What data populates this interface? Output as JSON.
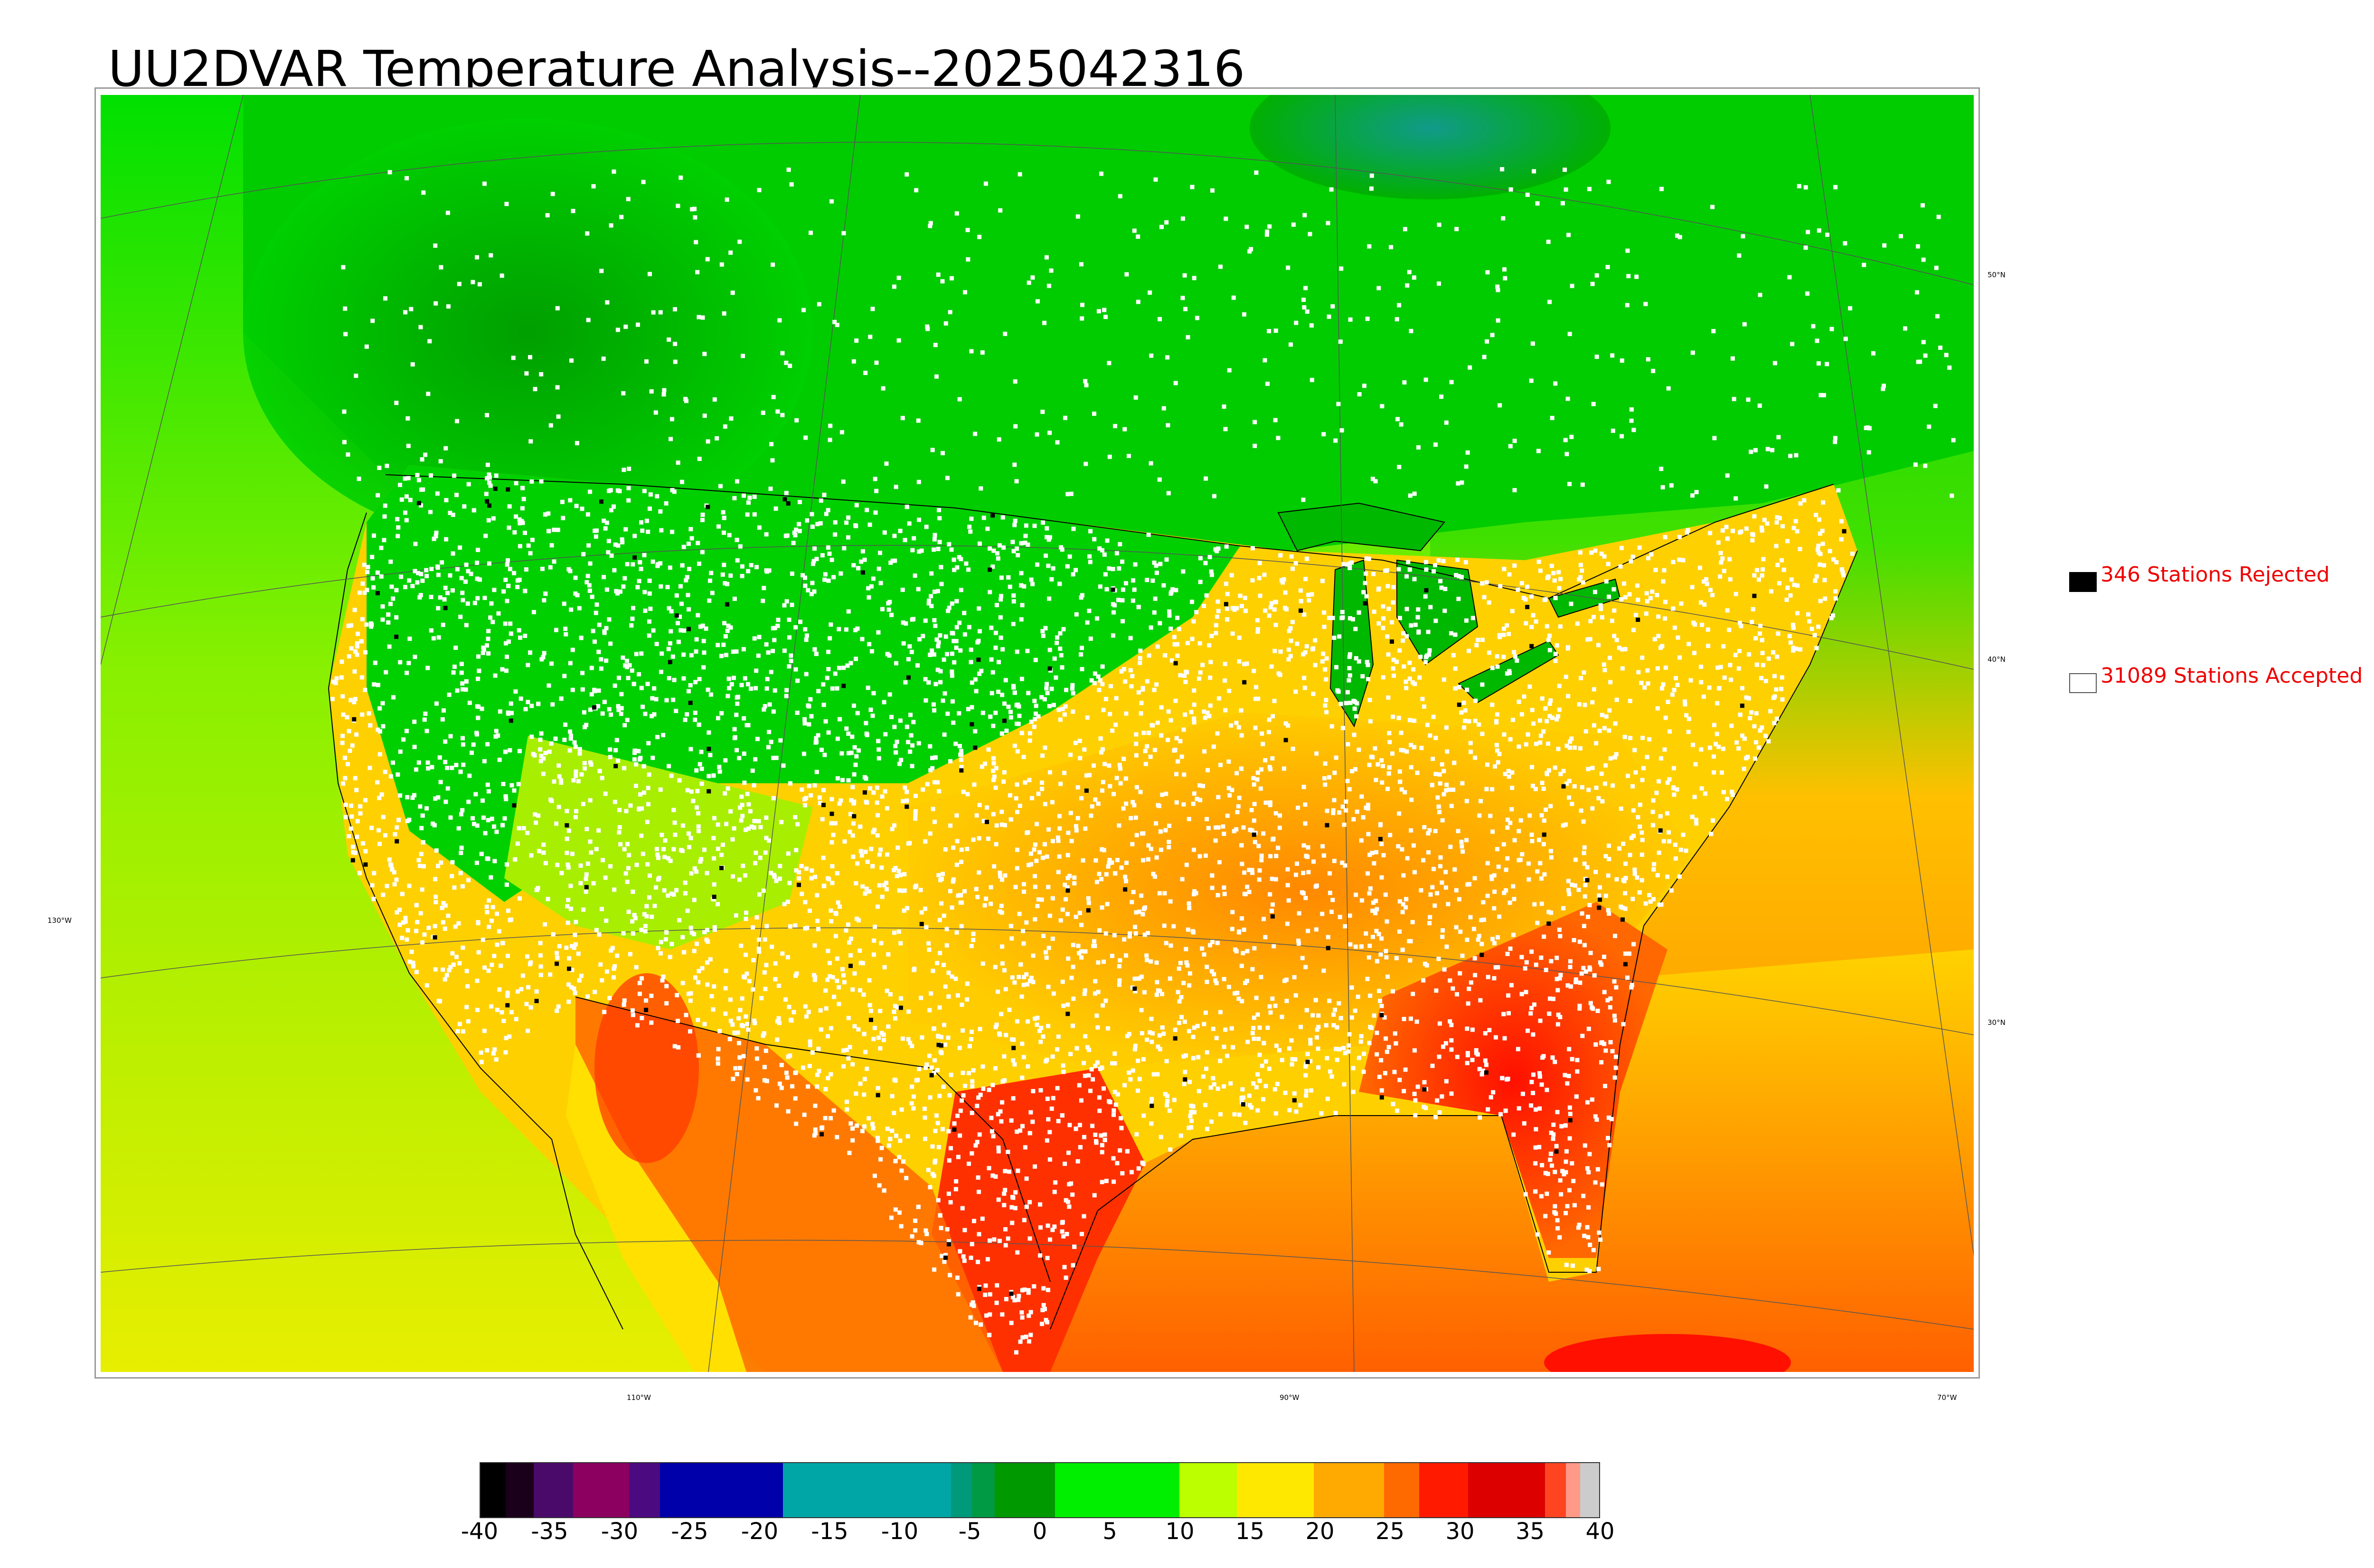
{
  "title": "UU2DVAR Temperature Analysis--2025042316",
  "legend": {
    "rejected": {
      "label": "346 Stations Rejected",
      "swatch_color": "#000000"
    },
    "accepted": {
      "label": "31089 Stations Accepted",
      "swatch_color": "#ffffff"
    }
  },
  "graticule": {
    "latitudes": [
      "50°N",
      "40°N",
      "30°N"
    ],
    "longitudes": [
      "130°W",
      "110°W",
      "90°W",
      "70°W"
    ]
  },
  "colorbar": {
    "min": -40,
    "max": 40,
    "tick_values": [
      -40,
      -35,
      -30,
      -25,
      -20,
      -15,
      -10,
      -5,
      0,
      5,
      10,
      15,
      20,
      25,
      30,
      35,
      40
    ],
    "tick_labels": [
      "-40",
      "-35",
      "-30",
      "-25",
      "-20",
      "-15",
      "-10",
      "-5",
      "0",
      "5",
      "10",
      "15",
      "20",
      "25",
      "30",
      "35",
      "40"
    ],
    "bands": [
      {
        "from": -40,
        "to": -38.2,
        "color": "#000000"
      },
      {
        "from": -38.2,
        "to": -36.2,
        "color": "#1a001a"
      },
      {
        "from": -36.2,
        "to": -33.4,
        "color": "#4a0a6a"
      },
      {
        "from": -33.4,
        "to": -29.4,
        "color": "#8c0060"
      },
      {
        "from": -29.4,
        "to": -27.2,
        "color": "#4b0a80"
      },
      {
        "from": -27.2,
        "to": -18.4,
        "color": "#0000aa"
      },
      {
        "from": -18.4,
        "to": -6.4,
        "color": "#00a6a6"
      },
      {
        "from": -6.4,
        "to": -4.9,
        "color": "#00997a"
      },
      {
        "from": -4.9,
        "to": -3.3,
        "color": "#009944"
      },
      {
        "from": -3.3,
        "to": 1.0,
        "color": "#009900"
      },
      {
        "from": 1.0,
        "to": 9.9,
        "color": "#00ee00"
      },
      {
        "from": 9.9,
        "to": 14.0,
        "color": "#bbff00"
      },
      {
        "from": 14.0,
        "to": 19.5,
        "color": "#ffe800"
      },
      {
        "from": 19.5,
        "to": 24.5,
        "color": "#ffaa00"
      },
      {
        "from": 24.5,
        "to": 27.0,
        "color": "#ff6a00"
      },
      {
        "from": 27.0,
        "to": 30.5,
        "color": "#ff1a00"
      },
      {
        "from": 30.5,
        "to": 36.0,
        "color": "#dd0000"
      },
      {
        "from": 36.0,
        "to": 37.5,
        "color": "#ff4422"
      },
      {
        "from": 37.5,
        "to": 38.5,
        "color": "#ff9988"
      },
      {
        "from": 38.5,
        "to": 40,
        "color": "#cccccc"
      }
    ]
  },
  "colors": {
    "cold_canada": "#00c800",
    "cool_plains": "#22d600",
    "mild": "#c8f000",
    "warm": "#ffb400",
    "hot": "#ff2000",
    "station_accepted": "#ffffff",
    "station_rejected": "#000000"
  }
}
